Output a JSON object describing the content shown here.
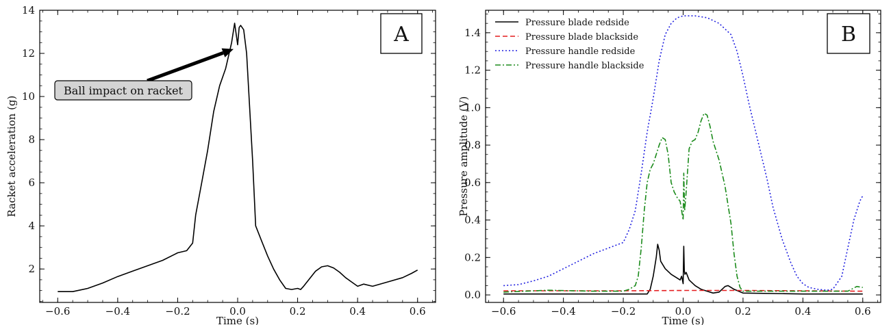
{
  "chart_data": [
    {
      "panel": "A",
      "type": "line",
      "xlabel": "Time (s)",
      "ylabel": "Racket acceleration (g)",
      "xlim": [
        -0.66,
        0.66
      ],
      "ylim": [
        0.45,
        14.0
      ],
      "xticks": [
        -0.6,
        -0.4,
        -0.2,
        0.0,
        0.2,
        0.4,
        0.6
      ],
      "yticks": [
        2,
        4,
        6,
        8,
        10,
        12,
        14
      ],
      "xtick_labels": [
        "−0.6",
        "−0.4",
        "−0.2",
        "0.0",
        "0.2",
        "0.4",
        "0.6"
      ],
      "ytick_labels": [
        "2",
        "4",
        "6",
        "8",
        "10",
        "12",
        "14"
      ],
      "annotation": {
        "text": "Ball impact on racket",
        "target": [
          0.0,
          12.2
        ]
      },
      "series": [
        {
          "color": "#000000",
          "x": [
            -0.6,
            -0.55,
            -0.5,
            -0.45,
            -0.4,
            -0.35,
            -0.3,
            -0.25,
            -0.2,
            -0.17,
            -0.15,
            -0.14,
            -0.12,
            -0.1,
            -0.08,
            -0.06,
            -0.04,
            -0.02,
            -0.01,
            0.0,
            0.005,
            0.01,
            0.02,
            0.03,
            0.04,
            0.05,
            0.06,
            0.08,
            0.1,
            0.12,
            0.14,
            0.16,
            0.18,
            0.2,
            0.21,
            0.22,
            0.24,
            0.26,
            0.28,
            0.3,
            0.32,
            0.34,
            0.36,
            0.38,
            0.4,
            0.42,
            0.45,
            0.5,
            0.55,
            0.58,
            0.6
          ],
          "y": [
            0.95,
            0.95,
            1.1,
            1.35,
            1.65,
            1.9,
            2.15,
            2.4,
            2.75,
            2.85,
            3.2,
            4.5,
            6.0,
            7.5,
            9.3,
            10.5,
            11.3,
            12.5,
            13.4,
            12.4,
            13.2,
            13.3,
            13.1,
            12.0,
            9.5,
            7.0,
            4.0,
            3.3,
            2.6,
            2.0,
            1.5,
            1.1,
            1.05,
            1.1,
            1.05,
            1.2,
            1.55,
            1.9,
            2.1,
            2.15,
            2.05,
            1.85,
            1.6,
            1.4,
            1.2,
            1.3,
            1.2,
            1.4,
            1.6,
            1.8,
            1.95
          ]
        }
      ]
    },
    {
      "panel": "B",
      "type": "line",
      "xlabel": "Time (s)",
      "ylabel": "Pressure amplitude (V)",
      "xlim": [
        -0.66,
        0.66
      ],
      "ylim": [
        -0.04,
        1.52
      ],
      "xticks": [
        -0.6,
        -0.4,
        -0.2,
        0.0,
        0.2,
        0.4,
        0.6
      ],
      "yticks": [
        0.0,
        0.2,
        0.4,
        0.6,
        0.8,
        1.0,
        1.2,
        1.4
      ],
      "xtick_labels": [
        "−0.6",
        "−0.4",
        "−0.2",
        "0.0",
        "0.2",
        "0.4",
        "0.6"
      ],
      "ytick_labels": [
        "0.0",
        "0.2",
        "0.4",
        "0.6",
        "0.8",
        "1.0",
        "1.2",
        "1.4"
      ],
      "legend_position": "top-left",
      "series": [
        {
          "name": "Pressure blade redside",
          "color": "#000000",
          "dash": "solid",
          "x": [
            -0.6,
            -0.2,
            -0.12,
            -0.11,
            -0.1,
            -0.09,
            -0.085,
            -0.08,
            -0.075,
            -0.06,
            -0.04,
            -0.02,
            -0.01,
            -0.005,
            0.0,
            0.002,
            0.004,
            0.006,
            0.01,
            0.02,
            0.04,
            0.06,
            0.08,
            0.1,
            0.12,
            0.14,
            0.15,
            0.17,
            0.2,
            0.4,
            0.6
          ],
          "y": [
            0.005,
            0.005,
            0.005,
            0.03,
            0.1,
            0.2,
            0.27,
            0.24,
            0.18,
            0.14,
            0.11,
            0.09,
            0.08,
            0.1,
            0.06,
            0.26,
            0.13,
            0.11,
            0.12,
            0.08,
            0.05,
            0.03,
            0.02,
            0.01,
            0.015,
            0.045,
            0.05,
            0.03,
            0.01,
            0.005,
            0.005
          ]
        },
        {
          "name": "Pressure blade blackside",
          "color": "#e41a1c",
          "dash": "dashed",
          "x": [
            -0.6,
            -0.2,
            0.0,
            0.2,
            0.4,
            0.6
          ],
          "y": [
            0.022,
            0.022,
            0.024,
            0.024,
            0.022,
            0.02
          ]
        },
        {
          "name": "Pressure handle redside",
          "color": "#1f1fe0",
          "dash": "dotted",
          "x": [
            -0.6,
            -0.55,
            -0.5,
            -0.45,
            -0.4,
            -0.35,
            -0.3,
            -0.25,
            -0.2,
            -0.18,
            -0.16,
            -0.14,
            -0.12,
            -0.1,
            -0.08,
            -0.06,
            -0.04,
            -0.02,
            0.0,
            0.04,
            0.08,
            0.12,
            0.16,
            0.18,
            0.2,
            0.22,
            0.25,
            0.28,
            0.3,
            0.33,
            0.36,
            0.38,
            0.4,
            0.42,
            0.45,
            0.48,
            0.5,
            0.53,
            0.55,
            0.57,
            0.59,
            0.6
          ],
          "y": [
            0.05,
            0.055,
            0.075,
            0.1,
            0.14,
            0.18,
            0.22,
            0.25,
            0.28,
            0.35,
            0.45,
            0.65,
            0.87,
            1.05,
            1.25,
            1.39,
            1.45,
            1.48,
            1.49,
            1.49,
            1.48,
            1.45,
            1.39,
            1.3,
            1.17,
            1.02,
            0.82,
            0.62,
            0.47,
            0.3,
            0.17,
            0.1,
            0.06,
            0.04,
            0.03,
            0.025,
            0.03,
            0.1,
            0.25,
            0.4,
            0.5,
            0.53
          ]
        },
        {
          "name": "Pressure handle blackside",
          "color": "#1a8a1a",
          "dash": "dashdot",
          "x": [
            -0.6,
            -0.45,
            -0.3,
            -0.2,
            -0.18,
            -0.16,
            -0.15,
            -0.14,
            -0.13,
            -0.12,
            -0.11,
            -0.1,
            -0.09,
            -0.08,
            -0.07,
            -0.06,
            -0.05,
            -0.04,
            -0.03,
            -0.02,
            -0.01,
            0.0,
            0.002,
            0.005,
            0.01,
            0.02,
            0.03,
            0.04,
            0.05,
            0.06,
            0.07,
            0.08,
            0.09,
            0.1,
            0.12,
            0.14,
            0.16,
            0.17,
            0.18,
            0.19,
            0.2,
            0.22,
            0.3,
            0.45,
            0.55,
            0.58,
            0.6
          ],
          "y": [
            0.015,
            0.025,
            0.02,
            0.02,
            0.03,
            0.05,
            0.1,
            0.25,
            0.45,
            0.6,
            0.67,
            0.7,
            0.75,
            0.8,
            0.84,
            0.83,
            0.75,
            0.6,
            0.55,
            0.52,
            0.5,
            0.4,
            0.65,
            0.45,
            0.55,
            0.78,
            0.82,
            0.83,
            0.87,
            0.93,
            0.97,
            0.96,
            0.9,
            0.82,
            0.72,
            0.58,
            0.38,
            0.22,
            0.1,
            0.04,
            0.02,
            0.02,
            0.02,
            0.02,
            0.02,
            0.045,
            0.04
          ]
        }
      ]
    }
  ]
}
